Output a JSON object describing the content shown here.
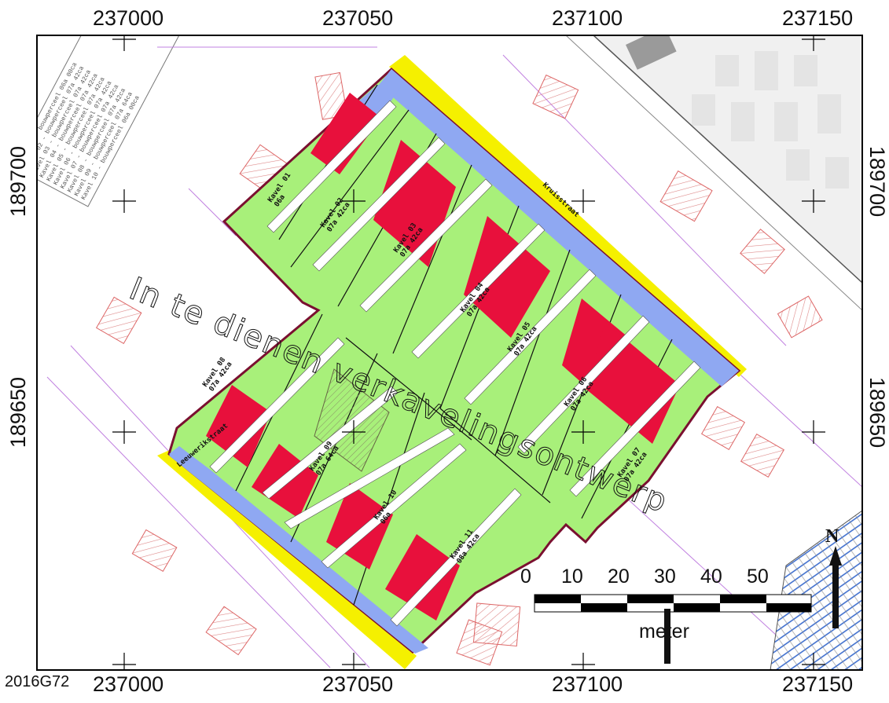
{
  "map": {
    "x_ticks_top": [
      "237000",
      "237050",
      "237100",
      "237150"
    ],
    "x_ticks_bottom": [
      "237000",
      "237050",
      "237100",
      "237150"
    ],
    "y_ticks_left": [
      "189700",
      "189650"
    ],
    "y_ticks_right": [
      "189700",
      "189650"
    ],
    "overlay_text": "In te dienen verkavelingsontwerp",
    "sheet_code": "2016G72",
    "street_names": [
      "Kruisstraat",
      "Leeuwerikstraat"
    ],
    "lots": [
      {
        "label": "Kavel 01",
        "area": "06a"
      },
      {
        "label": "Kavel 02",
        "area": "07a 42ca"
      },
      {
        "label": "Kavel 03",
        "area": "07a 42ca"
      },
      {
        "label": "Kavel 04",
        "area": "07a 42ca"
      },
      {
        "label": "Kavel 05",
        "area": "07a 42ca"
      },
      {
        "label": "Kavel 06",
        "area": "07a 42ca"
      },
      {
        "label": "Kavel 07",
        "area": "07a 42ca"
      },
      {
        "label": "Kavel 08",
        "area": "07a 42ca"
      },
      {
        "label": "Kavel 09",
        "area": "07a 64ca"
      },
      {
        "label": "Kavel 10",
        "area": "06a"
      },
      {
        "label": "Kavel 11",
        "area": "08a 42ca"
      }
    ],
    "legend_text": [
      "Kavel 01 - bouwperceel 06a 00ca",
      "Kavel 02 - bouwperceel 07a 42ca",
      "Kavel 03 - bouwperceel 07a 42ca",
      "Kavel 04 - bouwperceel 07a 42ca",
      "Kavel 05 - bouwperceel 07a 42ca",
      "Kavel 06 - bouwperceel 07a 42ca",
      "Kavel 07 - bouwperceel 07a 42ca",
      "Kavel 08 - bouwperceel 07a 42ca",
      "Kavel 09 - bouwperceel 07a 64ca",
      "Kavel 10 - bouwperceel 06a 00ca"
    ],
    "scale_bar": {
      "labels": [
        "0",
        "10",
        "20",
        "30",
        "40",
        "50"
      ],
      "unit": "meter",
      "north_label": "N"
    },
    "colors": {
      "plot_green": "#a8f07a",
      "building_red": "#e8103c",
      "road_blue": "#8fa8f2",
      "road_yellow": "#f5f000",
      "boundary": "#7a1030",
      "setback_white": "#ffffff"
    }
  }
}
